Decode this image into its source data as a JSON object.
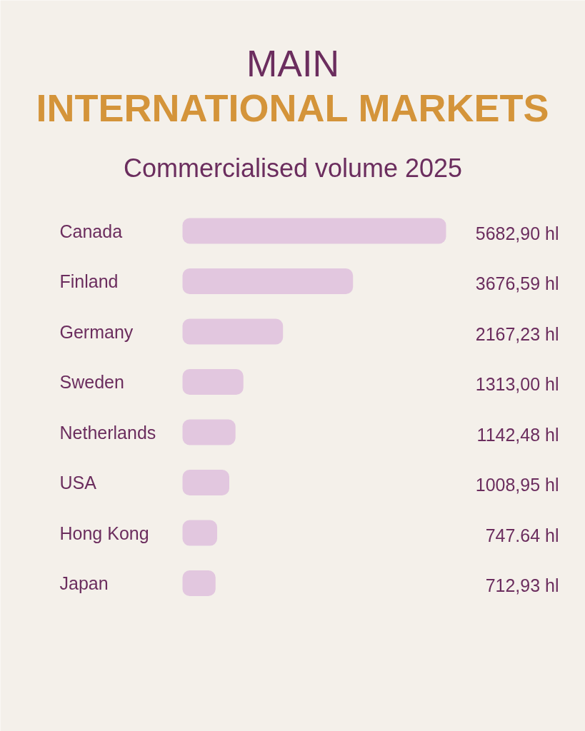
{
  "chart_data": {
    "type": "bar",
    "orientation": "horizontal",
    "title": "MAIN\nINTERNATIONAL MARKETS",
    "subtitle": "Commercialised volume 2025",
    "categories": [
      "Canada",
      "Finland",
      "Germany",
      "Sweden",
      "Netherlands",
      "USA",
      "Hong Kong",
      "Japan"
    ],
    "values": [
      5682.9,
      3676.59,
      2167.23,
      1313.0,
      1142.48,
      1008.95,
      747.64,
      712.93
    ],
    "value_labels": [
      "5682,90 hl",
      "3676,59 hl",
      "2167,23 hl",
      "1313,00 hl",
      "1142,48 hl",
      "1008,95 hl",
      "747.64 hl",
      "712,93 hl"
    ],
    "color": "#e2c7df",
    "tick_labels": false
  }
}
